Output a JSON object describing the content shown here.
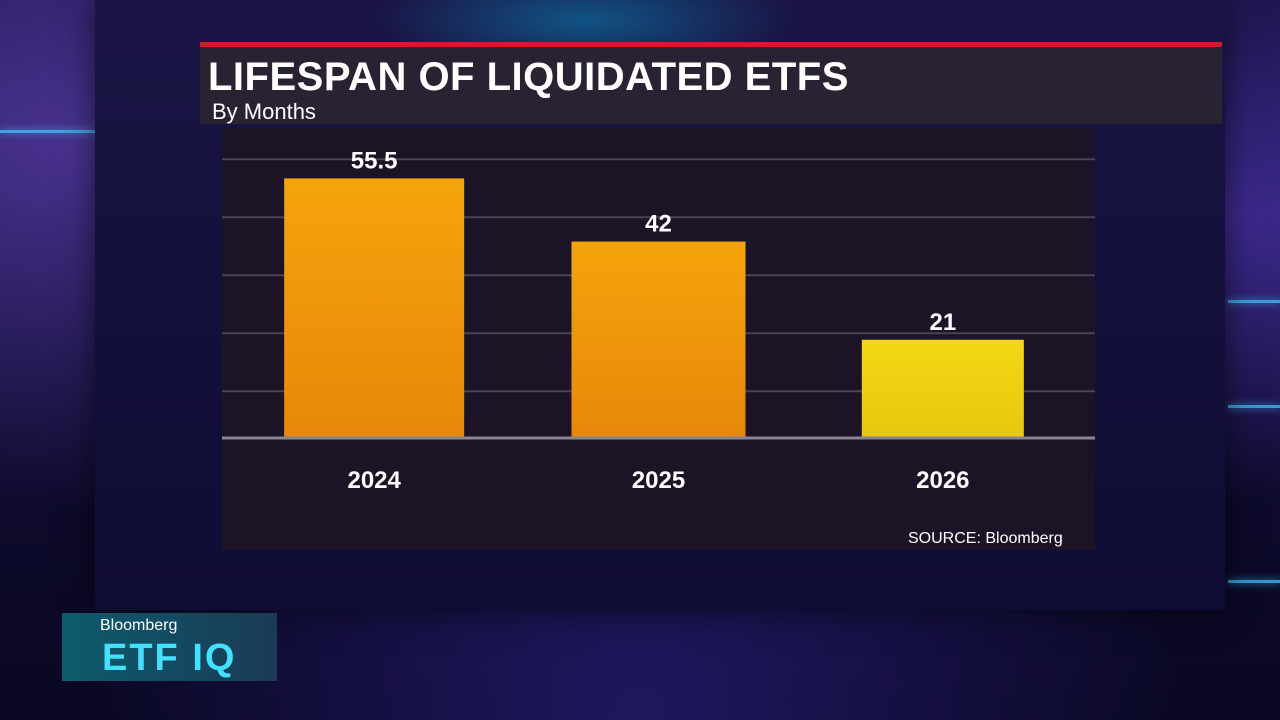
{
  "chart_data": {
    "type": "bar",
    "title": "LIFESPAN OF LIQUIDATED ETFS",
    "subtitle": "By Months",
    "categories": [
      "2024",
      "2025",
      "2026"
    ],
    "values": [
      55.5,
      42,
      21
    ],
    "data_labels": [
      "55.5",
      "42",
      "21"
    ],
    "bar_colors": [
      "#f5a40c",
      "#f5a40c",
      "#f2d816"
    ],
    "ylim": [
      0,
      62
    ],
    "grid": true,
    "source": "SOURCE: Bloomberg"
  },
  "broadcast": {
    "brand": "Bloomberg",
    "show": "ETF IQ"
  },
  "colors": {
    "accent_red": "#d11a2a",
    "gridline": "#4b4253",
    "baseline": "#8a8592"
  }
}
